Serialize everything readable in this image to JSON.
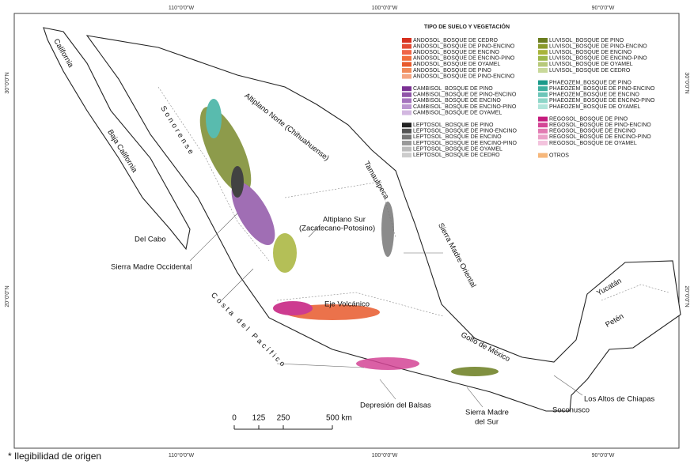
{
  "coords": {
    "top": [
      "110°0'0\"W",
      "100°0'0\"W",
      "90°0'0\"W"
    ],
    "bottom": [
      "110°0'0\"W",
      "100°0'0\"W",
      "90°0'0\"W"
    ],
    "left": [
      "30°0'0\"N",
      "20°0'0\"N"
    ],
    "right": [
      "30°0'0\"N",
      "20°0'0\"N"
    ]
  },
  "legend": {
    "title": "TIPO DE SUELO Y VEGETACIÓN",
    "left": [
      {
        "items": [
          {
            "label": "ANDOSOL_BOSQUE DE CEDRO",
            "color": "#d7301f"
          },
          {
            "label": "ANDOSOL_BOSQUE DE PINO-ENCINO",
            "color": "#e34a33"
          },
          {
            "label": "ANDOSOL_BOSQUE DE ENCINO",
            "color": "#ef6548"
          },
          {
            "label": "ANDOSOL_BOSQUE DE ENCINO-PINO",
            "color": "#f16d3c"
          },
          {
            "label": "ANDOSOL_BOSQUE DE OYAMEL",
            "color": "#e85a2c"
          },
          {
            "label": "ANDOSOL_BOSQUE DE PINO",
            "color": "#f08a5a"
          },
          {
            "label": "ANDOSOL_BOSQUE DE PINO-ENCINO",
            "color": "#f4a582"
          }
        ]
      },
      {
        "items": [
          {
            "label": "CAMBISOL_BOSQUE DE PINO",
            "color": "#7b3294"
          },
          {
            "label": "CAMBISOL_BOSQUE DE PINO-ENCINO",
            "color": "#9055a8"
          },
          {
            "label": "CAMBISOL_BOSQUE DE ENCINO",
            "color": "#a573bd"
          },
          {
            "label": "CAMBISOL_BOSQUE DE ENCINO-PINO",
            "color": "#bb96d0"
          },
          {
            "label": "CAMBISOL_BOSQUE DE OYAMEL",
            "color": "#d2b7e0"
          }
        ]
      },
      {
        "items": [
          {
            "label": "LEPTOSOL_BOSQUE DE PINO",
            "color": "#222222"
          },
          {
            "label": "LEPTOSOL_BOSQUE DE PINO-ENCINO",
            "color": "#555555"
          },
          {
            "label": "LEPTOSOL_BOSQUE DE ENCINO",
            "color": "#777777"
          },
          {
            "label": "LEPTOSOL_BOSQUE DE ENCINO-PINO",
            "color": "#999999"
          },
          {
            "label": "LEPTOSOL_BOSQUE DE OYAMEL",
            "color": "#bbbbbb"
          },
          {
            "label": "LEPTOSOL_BOSQUE DE CEDRO",
            "color": "#cccccc"
          }
        ]
      }
    ],
    "right": [
      {
        "items": [
          {
            "label": "LUVISOL_BOSQUE DE PINO",
            "color": "#6b7d1f"
          },
          {
            "label": "LUVISOL_BOSQUE DE PINO-ENCINO",
            "color": "#8a9a2c"
          },
          {
            "label": "LUVISOL_BOSQUE DE ENCINO",
            "color": "#a8b43a"
          },
          {
            "label": "LUVISOL_BOSQUE DE ENCINO-PINO",
            "color": "#9cb84a"
          },
          {
            "label": "LUVISOL_BOSQUE DE OYAMEL",
            "color": "#b7c97a"
          },
          {
            "label": "LUVISOL_BOSQUE DE CEDRO",
            "color": "#c9d99a"
          }
        ]
      },
      {
        "items": [
          {
            "label": "PHAEOZEM_BOSQUE DE PINO",
            "color": "#1a9a8a"
          },
          {
            "label": "PHAEOZEM_BOSQUE DE PINO-ENCINO",
            "color": "#3db0a0"
          },
          {
            "label": "PHAEOZEM_BOSQUE DE ENCINO",
            "color": "#6cc5b8"
          },
          {
            "label": "PHAEOZEM_BOSQUE DE ENCINO-PINO",
            "color": "#8dd6c8"
          },
          {
            "label": "PHAEOZEM_BOSQUE DE OYAMEL",
            "color": "#b0e5da"
          }
        ]
      },
      {
        "items": [
          {
            "label": "REGOSOL_BOSQUE DE PINO",
            "color": "#c51b7d"
          },
          {
            "label": "REGOSOL_BOSQUE DE PINO-ENCINO",
            "color": "#d44596"
          },
          {
            "label": "REGOSOL_BOSQUE DE ENCINO",
            "color": "#e27bb2"
          },
          {
            "label": "REGOSOL_BOSQUE DE ENCINO-PINO",
            "color": "#eba1c8"
          },
          {
            "label": "REGOSOL_BOSQUE DE OYAMEL",
            "color": "#f3c3dd"
          }
        ]
      },
      {
        "items": [
          {
            "label": "OTROS",
            "color": "#f6b77b"
          }
        ]
      }
    ]
  },
  "regions": [
    "California",
    "Sonorense",
    "Baja California",
    "Del Cabo",
    "Altiplano Norte (Chihuahuense)",
    "Tamaulipeca",
    "Altiplano Sur",
    "(Zacatecano-Potosino)",
    "Sierra Madre Oriental",
    "Sierra   Madre   Occidental",
    "Costa   del   Pacífico",
    "Eje Volcánico",
    "Golfo  de  México",
    "Yucatán",
    "Petén",
    "Depresión del Balsas",
    "Sierra Madre",
    "del Sur",
    "Los Altos de Chiapas",
    "Soconusco"
  ],
  "scale": {
    "ticks": [
      0,
      125,
      250,
      {
        "value": 500,
        "label": "500 km"
      }
    ]
  },
  "footnote": "* Ilegibilidad de origen"
}
